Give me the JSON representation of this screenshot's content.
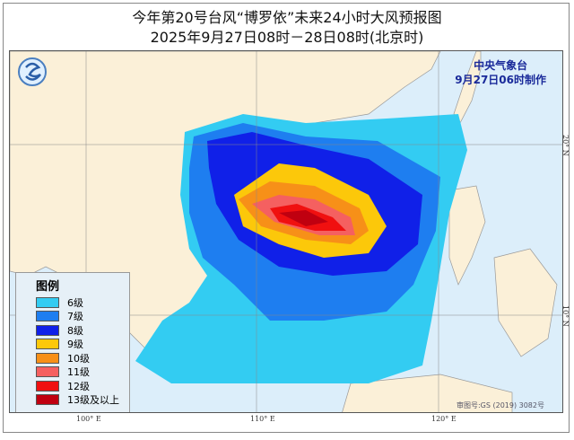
{
  "title": "今年第20号台风“博罗依”未来24小时大风预报图",
  "subtitle": "2025年9月27日08时－28日08时(北京时)",
  "agency": "中央气象台",
  "issued": "9月27日06时制作",
  "legend": {
    "title": "图例",
    "items": [
      {
        "label": "6级",
        "color": "#33ccf2"
      },
      {
        "label": "7级",
        "color": "#1e7ef0"
      },
      {
        "label": "8级",
        "color": "#1020e8"
      },
      {
        "label": "9级",
        "color": "#fcc80a"
      },
      {
        "label": "10级",
        "color": "#f79018"
      },
      {
        "label": "11级",
        "color": "#f56060"
      },
      {
        "label": "12级",
        "color": "#f01010"
      },
      {
        "label": "13级及以上",
        "color": "#c00010"
      }
    ]
  },
  "ticks": {
    "lon": [
      "100° E",
      "110° E",
      "120° E"
    ],
    "lat": [
      "20° N",
      "10° N"
    ]
  },
  "approval": "审图号:GS (2019) 3082号"
}
